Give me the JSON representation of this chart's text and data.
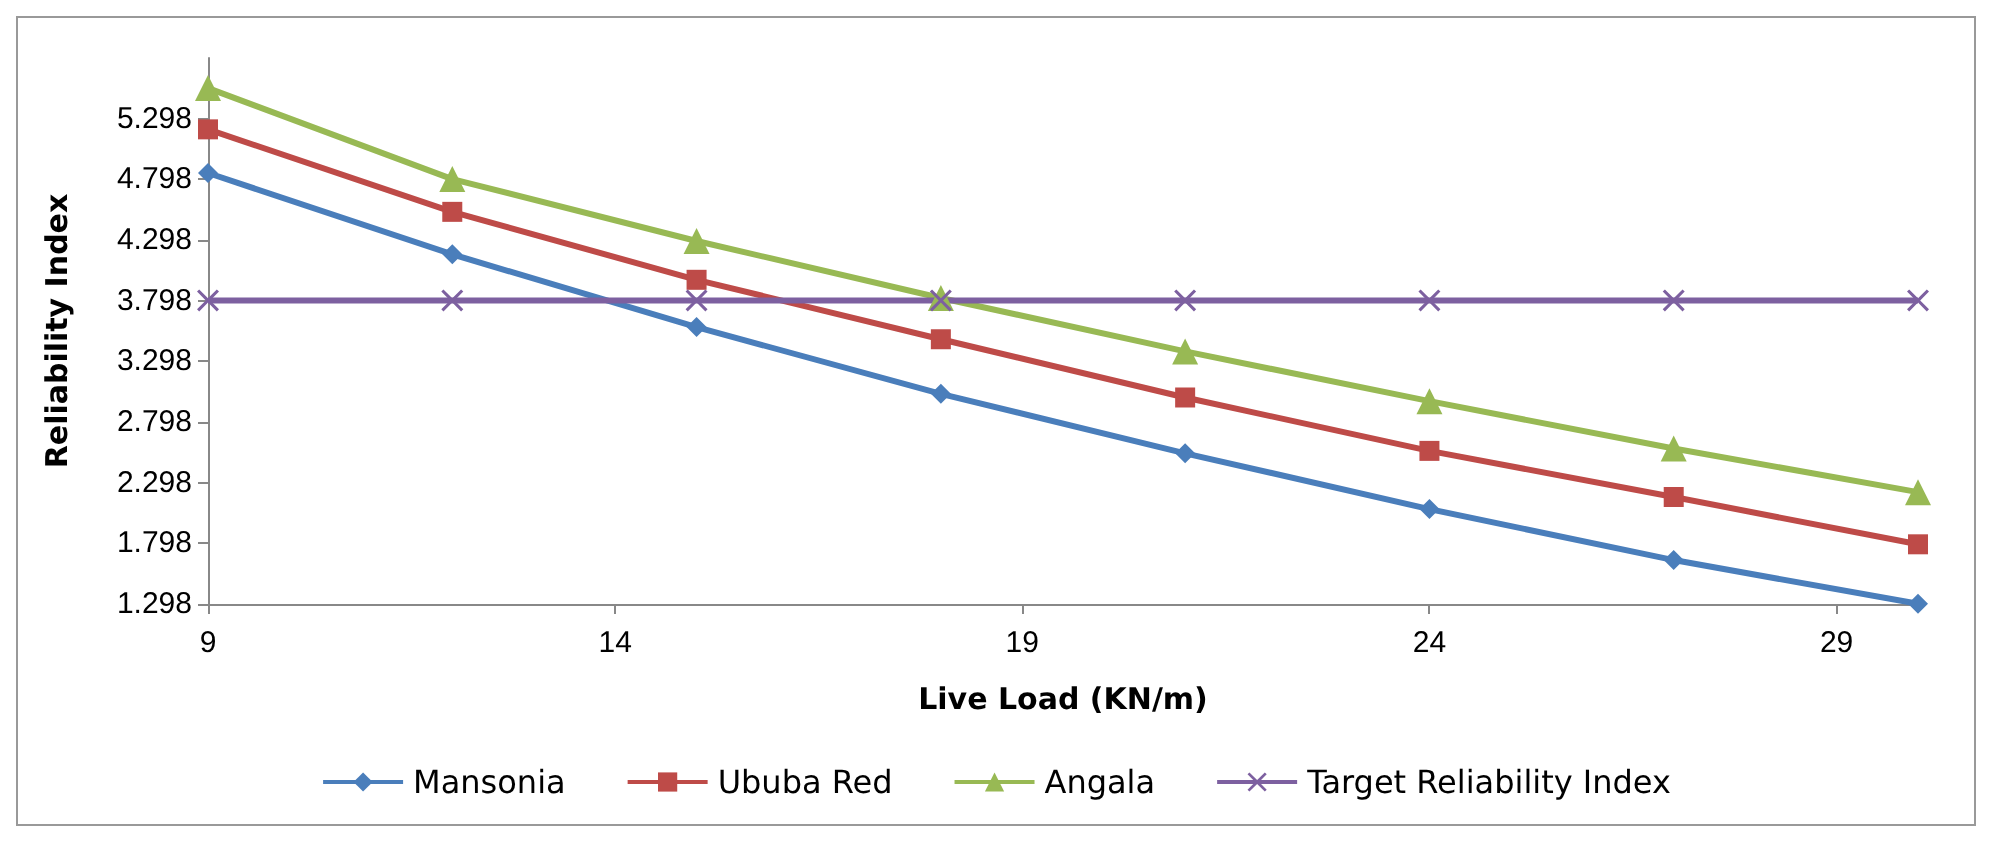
{
  "chart_data": {
    "type": "line",
    "xlabel": "Live Load (KN/m)",
    "ylabel": "Reliability Index",
    "x": [
      9,
      12,
      15,
      18,
      21,
      24,
      27,
      30
    ],
    "series": [
      {
        "name": "Mansonia",
        "color": "#4a7ebb",
        "marker": "diamond",
        "values": [
          4.85,
          4.18,
          3.58,
          3.03,
          2.54,
          2.08,
          1.66,
          1.3
        ]
      },
      {
        "name": "Ububa Red",
        "color": "#be4b48",
        "marker": "square",
        "values": [
          5.21,
          4.53,
          3.97,
          3.48,
          3.0,
          2.56,
          2.18,
          1.79
        ]
      },
      {
        "name": "Angala",
        "color": "#98b954",
        "marker": "triangle",
        "values": [
          5.55,
          4.8,
          4.29,
          3.82,
          3.38,
          2.97,
          2.58,
          2.22
        ]
      },
      {
        "name": "Target Reliability Index",
        "color": "#7d60a0",
        "marker": "cross",
        "values": [
          3.8,
          3.8,
          3.8,
          3.8,
          3.8,
          3.8,
          3.8,
          3.8
        ]
      }
    ],
    "xlim": [
      9,
      30
    ],
    "xticks": [
      9,
      14,
      19,
      24,
      29
    ],
    "ylim": [
      1.298,
      5.798
    ],
    "yticks": [
      1.298,
      1.798,
      2.298,
      2.798,
      3.298,
      3.798,
      4.298,
      4.798,
      5.298
    ],
    "grid": false,
    "legend": "bottom"
  }
}
